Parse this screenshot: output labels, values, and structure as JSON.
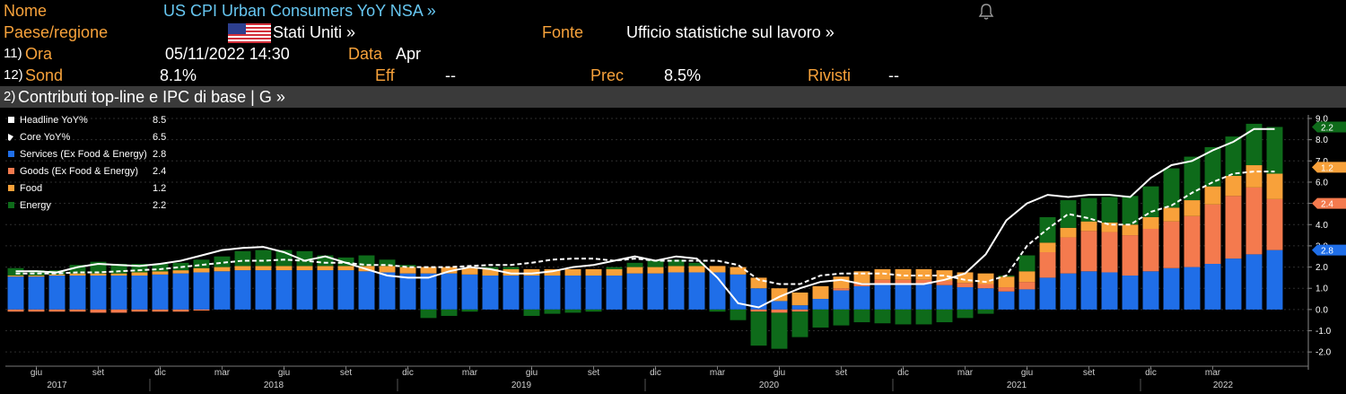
{
  "header": {
    "name_label": "Nome",
    "name_value": "US CPI Urban Consumers YoY NSA »",
    "country_label": "Paese/regione",
    "country_value": "Stati Uniti »",
    "source_label": "Fonte",
    "source_value": "Ufficio statistiche sul lavoro »",
    "row3_num": "11)",
    "time_label": "Ora",
    "time_value": "05/11/2022 14:30",
    "date_label": "Data",
    "date_value": "Apr",
    "row4_num": "12)",
    "survey_label": "Sond",
    "survey_value": "8.1%",
    "actual_label": "Eff",
    "actual_value": "--",
    "prior_label": "Prec",
    "prior_value": "8.5%",
    "revised_label": "Rivisti",
    "revised_value": "--",
    "tab_num": "2)",
    "tab_title": "Contributi top-line e IPC di base | G »"
  },
  "colors": {
    "services": "#1f6ee8",
    "goods": "#f47a4e",
    "food": "#f8a13a",
    "energy": "#0e6b1a",
    "headline": "#ffffff",
    "core": "#ffffff"
  },
  "chart_data": {
    "type": "bar",
    "stacked": true,
    "legend": [
      {
        "name": "Headline YoY%",
        "value": "8.5"
      },
      {
        "name": "Core YoY%",
        "value": "6.5"
      },
      {
        "name": "Services (Ex Food & Energy)",
        "value": "2.8"
      },
      {
        "name": "Goods (Ex Food & Energy)",
        "value": "2.4"
      },
      {
        "name": "Food",
        "value": "1.2"
      },
      {
        "name": "Energy",
        "value": "2.2"
      }
    ],
    "legend_position": "top-left",
    "y_ticks": [
      "9.0",
      "8.0",
      "7.0",
      "6.0",
      "5.0",
      "4.0",
      "3.0",
      "2.0",
      "1.0",
      "0.0",
      "-1.0",
      "-2.0"
    ],
    "ylim": [
      -2.5,
      9.0
    ],
    "x_month_labels": [
      "giu",
      "set",
      "dic",
      "mar",
      "giu",
      "set",
      "dic",
      "mar",
      "giu",
      "set",
      "dic",
      "mar",
      "giu",
      "set",
      "dic",
      "mar",
      "giu",
      "set",
      "dic",
      "mar"
    ],
    "x_year_labels": [
      "2017",
      "2018",
      "2019",
      "2020",
      "2021",
      "2022"
    ],
    "right_labels": [
      "2.2",
      "1.2",
      "2.4",
      "2.8"
    ],
    "services": [
      1.55,
      1.55,
      1.6,
      1.6,
      1.6,
      1.6,
      1.6,
      1.65,
      1.7,
      1.75,
      1.8,
      1.85,
      1.85,
      1.85,
      1.85,
      1.85,
      1.85,
      1.8,
      1.75,
      1.7,
      1.7,
      1.7,
      1.65,
      1.6,
      1.6,
      1.6,
      1.6,
      1.6,
      1.6,
      1.6,
      1.7,
      1.7,
      1.75,
      1.75,
      1.75,
      1.65,
      1.0,
      0.4,
      0.2,
      0.5,
      0.9,
      1.1,
      1.2,
      1.2,
      1.2,
      1.15,
      1.05,
      1.0,
      0.85,
      0.95,
      1.5,
      1.7,
      1.8,
      1.75,
      1.6,
      1.8,
      1.95,
      2.0,
      2.15,
      2.4,
      2.6,
      2.8
    ],
    "goods": [
      -0.1,
      -0.1,
      -0.1,
      -0.1,
      -0.15,
      -0.15,
      -0.1,
      -0.1,
      -0.1,
      -0.05,
      0.0,
      0.0,
      0.0,
      0.0,
      0.0,
      0.0,
      0.0,
      0.0,
      0.0,
      0.0,
      0.0,
      0.0,
      0.0,
      0.0,
      0.0,
      0.0,
      0.0,
      0.0,
      0.0,
      0.0,
      0.0,
      0.0,
      0.0,
      0.0,
      0.0,
      0.0,
      -0.1,
      -0.15,
      -0.1,
      0.0,
      0.1,
      0.15,
      0.2,
      0.2,
      0.2,
      0.2,
      0.2,
      0.2,
      0.2,
      0.35,
      1.2,
      1.7,
      1.9,
      1.9,
      1.9,
      2.0,
      2.2,
      2.4,
      2.8,
      2.95,
      3.15,
      2.4
    ],
    "food": [
      0.05,
      0.05,
      0.05,
      0.1,
      0.1,
      0.1,
      0.15,
      0.15,
      0.15,
      0.2,
      0.2,
      0.2,
      0.2,
      0.2,
      0.2,
      0.2,
      0.2,
      0.25,
      0.3,
      0.3,
      0.3,
      0.3,
      0.3,
      0.3,
      0.3,
      0.3,
      0.3,
      0.3,
      0.3,
      0.3,
      0.3,
      0.3,
      0.3,
      0.3,
      0.3,
      0.35,
      0.5,
      0.6,
      0.6,
      0.6,
      0.55,
      0.55,
      0.5,
      0.5,
      0.5,
      0.5,
      0.5,
      0.5,
      0.5,
      0.5,
      0.45,
      0.45,
      0.45,
      0.45,
      0.5,
      0.55,
      0.65,
      0.75,
      0.85,
      0.95,
      1.05,
      1.2
    ],
    "energy": [
      0.35,
      0.25,
      0.2,
      0.4,
      0.55,
      0.45,
      0.4,
      0.35,
      0.35,
      0.4,
      0.5,
      0.7,
      0.75,
      0.75,
      0.7,
      0.5,
      0.4,
      0.5,
      0.3,
      0.1,
      -0.4,
      -0.3,
      -0.1,
      0.1,
      0.1,
      -0.3,
      -0.2,
      -0.15,
      -0.1,
      0.1,
      0.2,
      0.3,
      0.3,
      0.15,
      -0.1,
      -0.5,
      -1.6,
      -1.7,
      -1.2,
      -0.85,
      -0.75,
      -0.6,
      -0.65,
      -0.7,
      -0.7,
      -0.6,
      -0.4,
      -0.2,
      0.05,
      0.75,
      1.2,
      1.3,
      1.1,
      1.2,
      1.35,
      1.45,
      1.85,
      2.05,
      1.85,
      1.85,
      1.95,
      2.2
    ],
    "headline": [
      1.8,
      1.8,
      1.75,
      2.0,
      2.15,
      2.1,
      2.05,
      2.15,
      2.3,
      2.55,
      2.8,
      2.9,
      2.95,
      2.7,
      2.3,
      2.5,
      2.2,
      1.9,
      1.6,
      1.5,
      1.5,
      1.8,
      2.0,
      1.9,
      1.7,
      1.7,
      1.8,
      2.0,
      2.1,
      2.3,
      2.5,
      2.3,
      2.5,
      2.4,
      1.5,
      0.3,
      0.1,
      0.6,
      1.0,
      1.3,
      1.4,
      1.2,
      1.2,
      1.2,
      1.2,
      1.4,
      1.7,
      2.6,
      4.2,
      5.0,
      5.4,
      5.3,
      5.4,
      5.4,
      5.3,
      6.2,
      6.8,
      7.0,
      7.5,
      7.9,
      8.5,
      8.5
    ],
    "core": [
      1.7,
      1.7,
      1.7,
      1.75,
      1.75,
      1.8,
      1.85,
      1.9,
      2.0,
      2.1,
      2.2,
      2.3,
      2.3,
      2.35,
      2.3,
      2.2,
      2.2,
      2.1,
      2.1,
      2.0,
      2.0,
      2.0,
      2.05,
      2.1,
      2.1,
      2.2,
      2.35,
      2.4,
      2.4,
      2.3,
      2.4,
      2.3,
      2.3,
      2.3,
      2.3,
      2.1,
      1.4,
      1.2,
      1.2,
      1.6,
      1.7,
      1.7,
      1.7,
      1.6,
      1.6,
      1.6,
      1.4,
      1.3,
      1.6,
      3.0,
      3.8,
      4.5,
      4.3,
      4.0,
      4.0,
      4.6,
      4.9,
      5.5,
      6.0,
      6.4,
      6.5,
      6.5
    ]
  }
}
